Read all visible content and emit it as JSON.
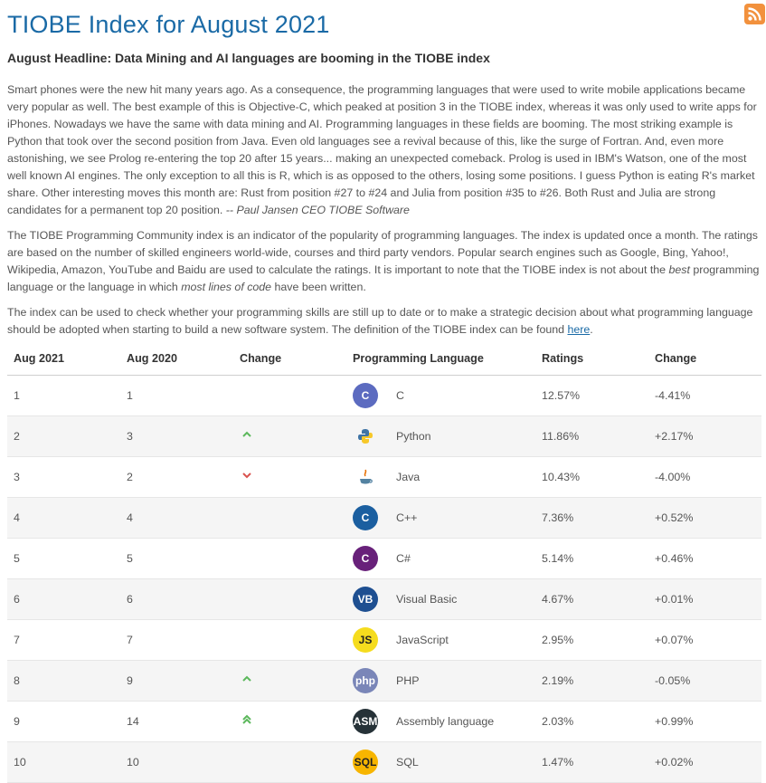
{
  "page": {
    "title": "TIOBE Index for August 2021",
    "headline": "August Headline: Data Mining and AI languages are booming in the TIOBE index"
  },
  "intro": {
    "p1": "Smart phones were the new hit many years ago. As a consequence, the programming languages that were used to write mobile applications became very popular as well. The best example of this is Objective-C, which peaked at position 3 in the TIOBE index, whereas it was only used to write apps for iPhones. Nowadays we have the same with data mining and AI. Programming languages in these fields are booming. The most striking example is Python that took over the second position from Java. Even old languages see a revival because of this, like the surge of Fortran. And, even more astonishing, we see Prolog re-entering the top 20 after 15 years... making an unexpected comeback. Prolog is used in IBM's Watson, one of the most well known AI engines. The only exception to all this is R, which is as opposed to the others, losing some positions. I guess Python is eating R's market share. Other interesting moves this month are: Rust from position #27 to #24 and Julia from position #35 to #26. Both Rust and Julia are strong candidates for a permanent top 20 position. ",
    "p1_author": "-- Paul Jansen CEO TIOBE Software",
    "p2_a": "The TIOBE Programming Community index is an indicator of the popularity of programming languages. The index is updated once a month. The ratings are based on the number of skilled engineers world-wide, courses and third party vendors. Popular search engines such as Google, Bing, Yahoo!, Wikipedia, Amazon, YouTube and Baidu are used to calculate the ratings. It is important to note that the TIOBE index is not about the ",
    "p2_em1": "best",
    "p2_b": " programming language or the language in which ",
    "p2_em2": "most lines of code",
    "p2_c": " have been written.",
    "p3_a": "The index can be used to check whether your programming skills are still up to date or to make a strategic decision about what programming language should be adopted when starting to build a new software system. The definition of the TIOBE index can be found ",
    "p3_link": "here",
    "p3_b": "."
  },
  "table": {
    "headers": [
      "Aug 2021",
      "Aug 2020",
      "Change",
      "Programming Language",
      "Ratings",
      "Change"
    ],
    "rows": [
      {
        "aug2021": "1",
        "aug2020": "1",
        "change_icon": "none",
        "logo": "c-logo",
        "logo_text": "C",
        "logo_color": "#5c6bc0",
        "language": "C",
        "ratings": "12.57%",
        "change": "-4.41%"
      },
      {
        "aug2021": "2",
        "aug2020": "3",
        "change_icon": "chevron-up",
        "logo": "python-logo",
        "logo_text": "",
        "logo_color": "#3f74a5",
        "language": "Python",
        "ratings": "11.86%",
        "change": "+2.17%"
      },
      {
        "aug2021": "3",
        "aug2020": "2",
        "change_icon": "chevron-down",
        "logo": "java-logo",
        "logo_text": "",
        "logo_color": "#e76f00",
        "language": "Java",
        "ratings": "10.43%",
        "change": "-4.00%"
      },
      {
        "aug2021": "4",
        "aug2020": "4",
        "change_icon": "none",
        "logo": "cpp-logo",
        "logo_text": "C",
        "logo_color": "#1b5fa0",
        "language": "C++",
        "ratings": "7.36%",
        "change": "+0.52%"
      },
      {
        "aug2021": "5",
        "aug2020": "5",
        "change_icon": "none",
        "logo": "csharp-logo",
        "logo_text": "C",
        "logo_color": "#68217a",
        "language": "C#",
        "ratings": "5.14%",
        "change": "+0.46%"
      },
      {
        "aug2021": "6",
        "aug2020": "6",
        "change_icon": "none",
        "logo": "vb-logo",
        "logo_text": "VB",
        "logo_color": "#1e4f91",
        "language": "Visual Basic",
        "ratings": "4.67%",
        "change": "+0.01%"
      },
      {
        "aug2021": "7",
        "aug2020": "7",
        "change_icon": "none",
        "logo": "js-logo",
        "logo_text": "JS",
        "logo_color": "#f5dc1e",
        "language": "JavaScript",
        "ratings": "2.95%",
        "change": "+0.07%"
      },
      {
        "aug2021": "8",
        "aug2020": "9",
        "change_icon": "chevron-up",
        "logo": "php-logo",
        "logo_text": "php",
        "logo_color": "#7a86b8",
        "language": "PHP",
        "ratings": "2.19%",
        "change": "-0.05%"
      },
      {
        "aug2021": "9",
        "aug2020": "14",
        "change_icon": "double-chevron-up",
        "logo": "asm-logo",
        "logo_text": "ASM",
        "logo_color": "#263238",
        "language": "Assembly language",
        "ratings": "2.03%",
        "change": "+0.99%"
      },
      {
        "aug2021": "10",
        "aug2020": "10",
        "change_icon": "none",
        "logo": "sql-logo",
        "logo_text": "SQL",
        "logo_color": "#f7b500",
        "language": "SQL",
        "ratings": "1.47%",
        "change": "+0.02%"
      }
    ]
  }
}
